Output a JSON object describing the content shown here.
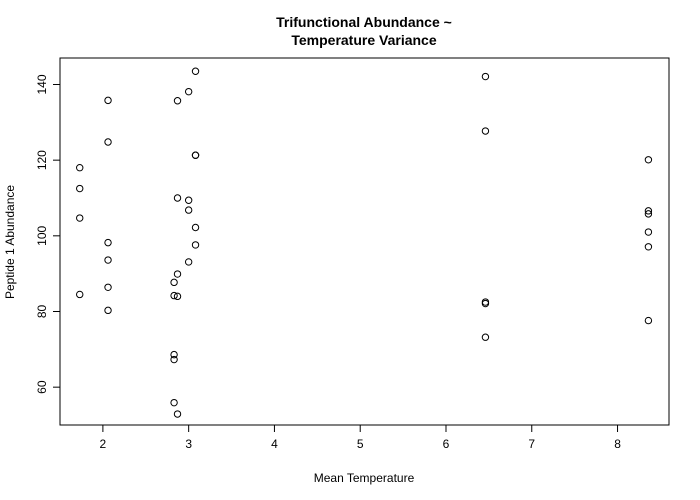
{
  "chart_data": {
    "type": "scatter",
    "title_lines": [
      "Trifunctional Abundance ~",
      "Temperature Variance"
    ],
    "xlabel": "Mean Temperature",
    "ylabel": "Peptide 1 Abundance",
    "xlim": [
      1.5,
      8.6
    ],
    "ylim": [
      50,
      147
    ],
    "xticks": [
      2,
      3,
      4,
      5,
      6,
      7,
      8
    ],
    "yticks": [
      60,
      80,
      100,
      120,
      140
    ],
    "grid": false,
    "legend": "none",
    "points": [
      {
        "x": 1.73,
        "y": 118
      },
      {
        "x": 1.73,
        "y": 112.5
      },
      {
        "x": 1.73,
        "y": 104.7
      },
      {
        "x": 1.73,
        "y": 84.5
      },
      {
        "x": 2.06,
        "y": 135.8
      },
      {
        "x": 2.06,
        "y": 124.8
      },
      {
        "x": 2.06,
        "y": 98.2
      },
      {
        "x": 2.06,
        "y": 93.6
      },
      {
        "x": 2.06,
        "y": 86.4
      },
      {
        "x": 2.06,
        "y": 80.3
      },
      {
        "x": 2.83,
        "y": 87.7
      },
      {
        "x": 2.83,
        "y": 84.2
      },
      {
        "x": 2.83,
        "y": 68.6
      },
      {
        "x": 2.83,
        "y": 67.3
      },
      {
        "x": 2.83,
        "y": 55.9
      },
      {
        "x": 2.87,
        "y": 135.7
      },
      {
        "x": 2.87,
        "y": 110
      },
      {
        "x": 2.87,
        "y": 89.9
      },
      {
        "x": 2.87,
        "y": 84
      },
      {
        "x": 2.87,
        "y": 52.9
      },
      {
        "x": 3.0,
        "y": 138.1
      },
      {
        "x": 3.0,
        "y": 109.4
      },
      {
        "x": 3.0,
        "y": 106.8
      },
      {
        "x": 3.0,
        "y": 93.1
      },
      {
        "x": 3.08,
        "y": 143.5
      },
      {
        "x": 3.08,
        "y": 121.3
      },
      {
        "x": 3.08,
        "y": 121.3
      },
      {
        "x": 3.08,
        "y": 102.2
      },
      {
        "x": 3.08,
        "y": 97.6
      },
      {
        "x": 6.46,
        "y": 142.1
      },
      {
        "x": 6.46,
        "y": 127.7
      },
      {
        "x": 6.46,
        "y": 82.5
      },
      {
        "x": 6.46,
        "y": 82.1
      },
      {
        "x": 6.46,
        "y": 73.2
      },
      {
        "x": 8.36,
        "y": 120.1
      },
      {
        "x": 8.36,
        "y": 106.6
      },
      {
        "x": 8.36,
        "y": 105.8
      },
      {
        "x": 8.36,
        "y": 101
      },
      {
        "x": 8.36,
        "y": 97.1
      },
      {
        "x": 8.36,
        "y": 77.6
      }
    ]
  }
}
